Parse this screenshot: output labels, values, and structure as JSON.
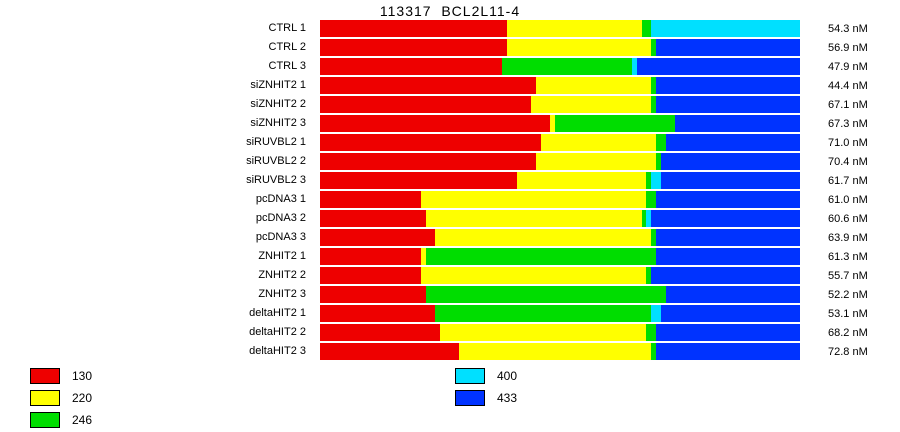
{
  "title": "113317  BCL2L11-4",
  "chart_data": {
    "type": "bar",
    "orientation": "horizontal",
    "stacked": true,
    "title": "113317  BCL2L11-4",
    "xlabel": "",
    "ylabel": "",
    "unit": "nM",
    "legend_position": "bottom",
    "grid": false,
    "categories": [
      "CTRL 1",
      "CTRL 2",
      "CTRL 3",
      "siZNHIT2 1",
      "siZNHIT2 2",
      "siZNHIT2 3",
      "siRUVBL2 1",
      "siRUVBL2 2",
      "siRUVBL2 3",
      "pcDNA3 1",
      "pcDNA3 2",
      "pcDNA3 3",
      "ZNHIT2 1",
      "ZNHIT2 2",
      "ZNHIT2 3",
      "deltaHIT2 1",
      "deltaHIT2 2",
      "deltaHIT2 3"
    ],
    "value_labels": [
      "54.3 nM",
      "56.9 nM",
      "47.9 nM",
      "44.4 nM",
      "67.1 nM",
      "67.3 nM",
      "71.0 nM",
      "70.4 nM",
      "61.7 nM",
      "61.0 nM",
      "60.6 nM",
      "63.9 nM",
      "61.3 nM",
      "55.7 nM",
      "52.2 nM",
      "53.1 nM",
      "68.2 nM",
      "72.8 nM"
    ],
    "concentrations_nM": [
      54.3,
      56.9,
      47.9,
      44.4,
      67.1,
      67.3,
      71.0,
      70.4,
      61.7,
      61.0,
      60.6,
      63.9,
      61.3,
      55.7,
      52.2,
      53.1,
      68.2,
      72.8
    ],
    "series": [
      {
        "name": "130",
        "color": "#ee0000",
        "values": [
          39,
          39,
          38,
          45,
          44,
          48,
          46,
          45,
          41,
          21,
          22,
          24,
          21,
          21,
          22,
          24,
          25,
          29
        ]
      },
      {
        "name": "220",
        "color": "#ffff00",
        "values": [
          28,
          30,
          0,
          24,
          25,
          1,
          24,
          25,
          27,
          47,
          45,
          45,
          1,
          47,
          0,
          0,
          43,
          40
        ]
      },
      {
        "name": "246",
        "color": "#00dd00",
        "values": [
          2,
          1,
          27,
          1,
          1,
          25,
          2,
          1,
          1,
          2,
          1,
          1,
          48,
          1,
          50,
          45,
          2,
          1
        ]
      },
      {
        "name": "400",
        "color": "#00e0ff",
        "values": [
          31,
          0,
          1,
          0,
          0,
          0,
          0,
          0,
          2,
          0,
          1,
          0,
          0,
          0,
          0,
          2,
          0,
          0
        ]
      },
      {
        "name": "433",
        "color": "#0033ff",
        "values": [
          0,
          30,
          34,
          30,
          30,
          26,
          28,
          29,
          29,
          30,
          31,
          30,
          30,
          31,
          28,
          29,
          30,
          30
        ]
      }
    ]
  },
  "legend": {
    "columns": [
      [
        {
          "label": "130",
          "color": "#ee0000"
        },
        {
          "label": "220",
          "color": "#ffff00"
        },
        {
          "label": "246",
          "color": "#00dd00"
        }
      ],
      [
        {
          "label": "400",
          "color": "#00e0ff"
        },
        {
          "label": "433",
          "color": "#0033ff"
        }
      ]
    ]
  }
}
